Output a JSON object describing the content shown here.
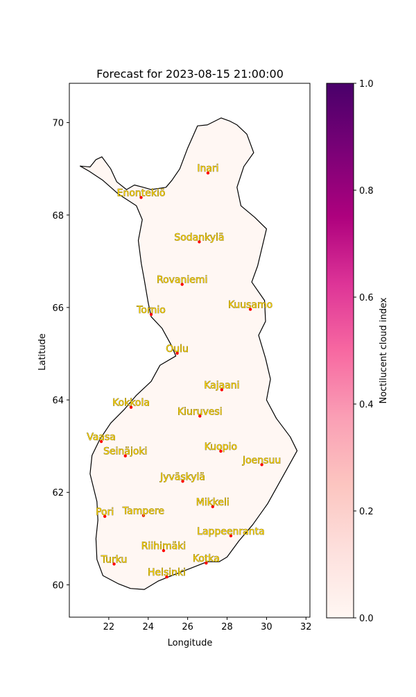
{
  "chart_data": {
    "type": "map",
    "title": "Forecast for 2023-08-15 21:00:00",
    "xlabel": "Longitude",
    "ylabel": "Latitude",
    "xlim": [
      20.0,
      32.2
    ],
    "ylim": [
      59.3,
      70.85
    ],
    "xticks": [
      22,
      24,
      26,
      28,
      30,
      32
    ],
    "yticks": [
      60,
      62,
      64,
      66,
      68,
      70
    ],
    "colorbar": {
      "label": "Noctilucent cloud index",
      "range": [
        0.0,
        1.0
      ],
      "ticks": [
        "0.0",
        "0.2",
        "0.4",
        "0.6",
        "0.8",
        "1.0"
      ],
      "colormap": "RdPu",
      "stops": [
        "#fff7f3",
        "#fde0dd",
        "#fcc5c0",
        "#fa9fb5",
        "#f768a1",
        "#dd3497",
        "#ae017e",
        "#7a0177",
        "#49006a"
      ]
    },
    "grid": false,
    "field_value": 0.0,
    "marker_color": "#ff0000",
    "label_color": "#ffd700",
    "cities": [
      {
        "name": "Inari",
        "lon": 27.03,
        "lat": 68.91
      },
      {
        "name": "Enontekiö",
        "lon": 23.64,
        "lat": 68.38
      },
      {
        "name": "Sodankylä",
        "lon": 26.59,
        "lat": 67.42
      },
      {
        "name": "Rovaniemi",
        "lon": 25.72,
        "lat": 66.5
      },
      {
        "name": "Kuusamo",
        "lon": 29.18,
        "lat": 65.96
      },
      {
        "name": "Tornio",
        "lon": 24.15,
        "lat": 65.85
      },
      {
        "name": "Oulu",
        "lon": 25.47,
        "lat": 65.01
      },
      {
        "name": "Kajaani",
        "lon": 27.73,
        "lat": 64.22
      },
      {
        "name": "Kokkola",
        "lon": 23.13,
        "lat": 63.84
      },
      {
        "name": "Kiuruvesi",
        "lon": 26.62,
        "lat": 63.65
      },
      {
        "name": "Vaasa",
        "lon": 21.62,
        "lat": 63.1
      },
      {
        "name": "Kuopio",
        "lon": 27.68,
        "lat": 62.89
      },
      {
        "name": "Seinäjoki",
        "lon": 22.84,
        "lat": 62.79
      },
      {
        "name": "Joensuu",
        "lon": 29.76,
        "lat": 62.6
      },
      {
        "name": "Jyväskylä",
        "lon": 25.75,
        "lat": 62.24
      },
      {
        "name": "Mikkeli",
        "lon": 27.27,
        "lat": 61.69
      },
      {
        "name": "Pori",
        "lon": 21.8,
        "lat": 61.48
      },
      {
        "name": "Tampere",
        "lon": 23.76,
        "lat": 61.5
      },
      {
        "name": "Lappeenranta",
        "lon": 28.19,
        "lat": 61.06
      },
      {
        "name": "Riihimäki",
        "lon": 24.78,
        "lat": 60.74
      },
      {
        "name": "Turku",
        "lon": 22.27,
        "lat": 60.45
      },
      {
        "name": "Kotka",
        "lon": 26.94,
        "lat": 60.47
      },
      {
        "name": "Helsinki",
        "lon": 24.94,
        "lat": 60.17
      }
    ],
    "border_outline": [
      [
        20.55,
        69.06
      ],
      [
        21.05,
        69.04
      ],
      [
        21.35,
        69.2
      ],
      [
        21.65,
        69.26
      ],
      [
        22.1,
        69.0
      ],
      [
        22.4,
        68.72
      ],
      [
        22.9,
        68.55
      ],
      [
        23.3,
        68.65
      ],
      [
        23.75,
        68.6
      ],
      [
        24.15,
        68.55
      ],
      [
        24.9,
        68.6
      ],
      [
        25.2,
        68.75
      ],
      [
        25.6,
        69.0
      ],
      [
        26.0,
        69.45
      ],
      [
        26.5,
        69.93
      ],
      [
        27.0,
        69.95
      ],
      [
        27.7,
        70.1
      ],
      [
        28.15,
        70.03
      ],
      [
        28.5,
        69.95
      ],
      [
        29.0,
        69.75
      ],
      [
        29.35,
        69.35
      ],
      [
        28.85,
        69.05
      ],
      [
        28.5,
        68.6
      ],
      [
        28.7,
        68.2
      ],
      [
        29.4,
        67.95
      ],
      [
        30.0,
        67.7
      ],
      [
        29.55,
        66.9
      ],
      [
        29.25,
        66.55
      ],
      [
        29.9,
        66.15
      ],
      [
        29.95,
        65.7
      ],
      [
        29.6,
        65.4
      ],
      [
        29.95,
        64.9
      ],
      [
        30.2,
        64.45
      ],
      [
        30.0,
        64.0
      ],
      [
        30.5,
        63.6
      ],
      [
        31.2,
        63.2
      ],
      [
        31.55,
        62.9
      ],
      [
        30.9,
        62.4
      ],
      [
        30.05,
        61.75
      ],
      [
        29.3,
        61.3
      ],
      [
        28.6,
        60.95
      ],
      [
        28.0,
        60.6
      ],
      [
        27.6,
        60.5
      ],
      [
        27.0,
        60.5
      ],
      [
        26.4,
        60.4
      ],
      [
        25.8,
        60.3
      ],
      [
        25.2,
        60.2
      ],
      [
        24.5,
        60.08
      ],
      [
        23.8,
        59.9
      ],
      [
        23.1,
        59.92
      ],
      [
        22.5,
        60.02
      ],
      [
        21.7,
        60.2
      ],
      [
        21.4,
        60.55
      ],
      [
        21.35,
        61.0
      ],
      [
        21.45,
        61.4
      ],
      [
        21.4,
        61.8
      ],
      [
        21.05,
        62.4
      ],
      [
        21.15,
        62.8
      ],
      [
        21.55,
        63.15
      ],
      [
        22.1,
        63.5
      ],
      [
        22.8,
        63.8
      ],
      [
        23.4,
        64.1
      ],
      [
        24.15,
        64.4
      ],
      [
        24.6,
        64.75
      ],
      [
        25.4,
        64.95
      ],
      [
        25.15,
        65.2
      ],
      [
        24.7,
        65.55
      ],
      [
        24.15,
        65.8
      ],
      [
        24.0,
        66.1
      ],
      [
        23.8,
        66.6
      ],
      [
        23.65,
        66.95
      ],
      [
        23.5,
        67.45
      ],
      [
        23.7,
        67.9
      ],
      [
        23.4,
        68.2
      ],
      [
        22.5,
        68.45
      ],
      [
        21.7,
        68.75
      ],
      [
        21.0,
        68.95
      ],
      [
        20.55,
        69.06
      ]
    ]
  }
}
